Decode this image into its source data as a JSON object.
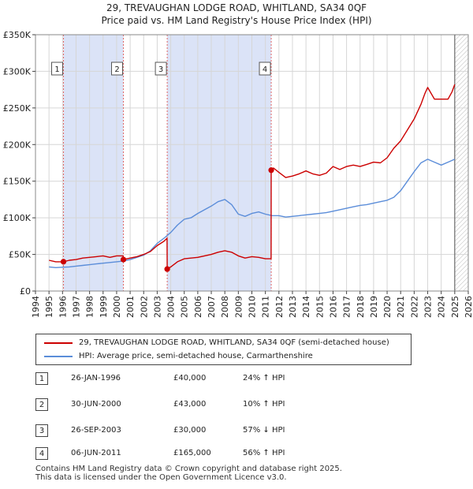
{
  "title_line1": "29, TREVAUGHAN LODGE ROAD, WHITLAND, SA34 0QF",
  "title_line2": "Price paid vs. HM Land Registry's House Price Index (HPI)",
  "colors": {
    "red": "#cc0000",
    "blue": "#5b8dd9",
    "shade": "#dbe3f7",
    "grid": "#d6d6d6"
  },
  "chart_data": {
    "type": "line",
    "xlim": [
      1994,
      2026
    ],
    "ylim": [
      0,
      350000
    ],
    "y_ticks": [
      0,
      50000,
      100000,
      150000,
      200000,
      250000,
      300000,
      350000
    ],
    "y_tick_labels": [
      "£0",
      "£50K",
      "£100K",
      "£150K",
      "£200K",
      "£250K",
      "£300K",
      "£350K"
    ],
    "x_ticks": [
      1994,
      1995,
      1996,
      1997,
      1998,
      1999,
      2000,
      2001,
      2002,
      2003,
      2004,
      2005,
      2006,
      2007,
      2008,
      2009,
      2010,
      2011,
      2012,
      2013,
      2014,
      2015,
      2016,
      2017,
      2018,
      2019,
      2020,
      2021,
      2022,
      2023,
      2024,
      2025,
      2026
    ],
    "shaded_ranges": [
      [
        1996.07,
        2000.5
      ],
      [
        2003.74,
        2011.43
      ]
    ],
    "future_from": 2025.0,
    "series": [
      {
        "name": "29, TREVAUGHAN LODGE ROAD, WHITLAND, SA34 0QF (semi-detached house)",
        "color": "#cc0000",
        "x": [
          1995.0,
          1995.5,
          1996.07,
          1996.5,
          1997.0,
          1997.5,
          1998.0,
          1998.5,
          1999.0,
          1999.5,
          2000.0,
          2000.49,
          2000.5,
          2001.0,
          2001.5,
          2002.0,
          2002.5,
          2003.0,
          2003.5,
          2003.73,
          2003.74,
          2004.0,
          2004.5,
          2005.0,
          2005.5,
          2006.0,
          2006.5,
          2007.0,
          2007.5,
          2008.0,
          2008.5,
          2009.0,
          2009.5,
          2010.0,
          2010.5,
          2011.0,
          2011.42,
          2011.43,
          2011.6,
          2012.0,
          2012.5,
          2013.0,
          2013.5,
          2014.0,
          2014.5,
          2015.0,
          2015.5,
          2016.0,
          2016.5,
          2017.0,
          2017.5,
          2018.0,
          2018.5,
          2019.0,
          2019.5,
          2020.0,
          2020.5,
          2021.0,
          2021.5,
          2022.0,
          2022.5,
          2022.8,
          2023.0,
          2023.5,
          2024.0,
          2024.5,
          2024.8,
          2025.0
        ],
        "y": [
          42000,
          40000,
          40000,
          42000,
          43000,
          45000,
          46000,
          47000,
          48000,
          46000,
          48000,
          48000,
          43000,
          45000,
          47000,
          50000,
          54000,
          62000,
          68000,
          72000,
          30000,
          33000,
          40000,
          44000,
          45000,
          46000,
          48000,
          50000,
          53000,
          55000,
          53000,
          48000,
          45000,
          47000,
          46000,
          44000,
          44000,
          165000,
          168000,
          162000,
          155000,
          157000,
          160000,
          164000,
          160000,
          158000,
          161000,
          170000,
          166000,
          170000,
          172000,
          170000,
          173000,
          176000,
          175000,
          182000,
          195000,
          205000,
          220000,
          235000,
          255000,
          270000,
          278000,
          262000,
          262000,
          262000,
          272000,
          282000
        ]
      },
      {
        "name": "HPI: Average price, semi-detached house, Carmarthenshire",
        "color": "#5b8dd9",
        "x": [
          1995.0,
          1995.5,
          1996.0,
          1996.5,
          1997.0,
          1997.5,
          1998.0,
          1998.5,
          1999.0,
          1999.5,
          2000.0,
          2000.5,
          2001.0,
          2001.5,
          2002.0,
          2002.5,
          2003.0,
          2003.5,
          2004.0,
          2004.5,
          2005.0,
          2005.5,
          2006.0,
          2006.5,
          2007.0,
          2007.5,
          2008.0,
          2008.5,
          2009.0,
          2009.5,
          2010.0,
          2010.5,
          2011.0,
          2011.5,
          2012.0,
          2012.5,
          2013.0,
          2013.5,
          2014.0,
          2014.5,
          2015.0,
          2015.5,
          2016.0,
          2016.5,
          2017.0,
          2017.5,
          2018.0,
          2018.5,
          2019.0,
          2019.5,
          2020.0,
          2020.5,
          2021.0,
          2021.5,
          2022.0,
          2022.5,
          2023.0,
          2023.5,
          2024.0,
          2024.5,
          2025.0
        ],
        "y": [
          33000,
          32000,
          32500,
          33000,
          34000,
          35000,
          36000,
          37000,
          38000,
          39000,
          40000,
          41000,
          43000,
          46000,
          49000,
          55000,
          65000,
          72000,
          80000,
          90000,
          98000,
          100000,
          106000,
          111000,
          116000,
          122000,
          125000,
          118000,
          105000,
          102000,
          106000,
          108000,
          105000,
          103000,
          103000,
          101000,
          102000,
          103000,
          104000,
          105000,
          106000,
          107000,
          109000,
          111000,
          113000,
          115000,
          117000,
          118000,
          120000,
          122000,
          124000,
          128000,
          137000,
          150000,
          163000,
          175000,
          180000,
          176000,
          172000,
          176000,
          180000
        ]
      }
    ],
    "markers": [
      {
        "label": "1",
        "x": 1996.07,
        "y": 40000
      },
      {
        "label": "2",
        "x": 2000.5,
        "y": 43000
      },
      {
        "label": "3",
        "x": 2003.74,
        "y": 30000
      },
      {
        "label": "4",
        "x": 2011.43,
        "y": 165000
      }
    ]
  },
  "legend": [
    {
      "label": "29, TREVAUGHAN LODGE ROAD, WHITLAND, SA34 0QF (semi-detached house)",
      "color": "#cc0000"
    },
    {
      "label": "HPI: Average price, semi-detached house, Carmarthenshire",
      "color": "#5b8dd9"
    }
  ],
  "sales": [
    {
      "num": "1",
      "date": "26-JAN-1996",
      "price": "£40,000",
      "hpi": "24% ↑ HPI"
    },
    {
      "num": "2",
      "date": "30-JUN-2000",
      "price": "£43,000",
      "hpi": "10% ↑ HPI"
    },
    {
      "num": "3",
      "date": "26-SEP-2003",
      "price": "£30,000",
      "hpi": "57% ↓ HPI"
    },
    {
      "num": "4",
      "date": "06-JUN-2011",
      "price": "£165,000",
      "hpi": "56% ↑ HPI"
    }
  ],
  "footer_line1": "Contains HM Land Registry data © Crown copyright and database right 2025.",
  "footer_line2": "This data is licensed under the Open Government Licence v3.0."
}
